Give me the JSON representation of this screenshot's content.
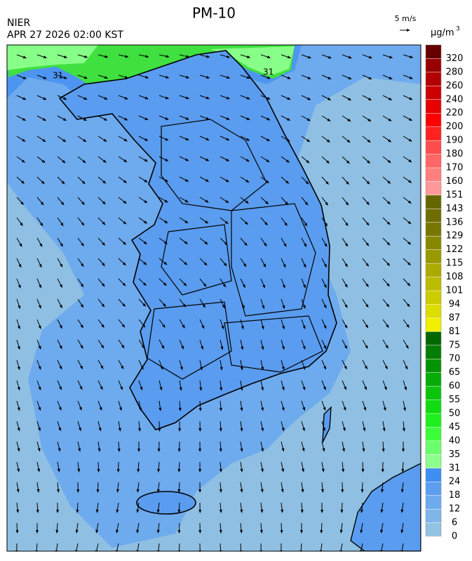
{
  "header": {
    "title": "PM-10",
    "agency": "NIER",
    "timestamp": "APR 27 2026 02:00 KST",
    "wind_scale": "5 m/s"
  },
  "map": {
    "contour_labels": [
      "31",
      "31"
    ]
  },
  "legend": {
    "unit": "μg/m",
    "unit_superscript": "3",
    "levels": [
      0,
      6,
      12,
      18,
      24,
      31,
      35,
      40,
      45,
      50,
      55,
      60,
      65,
      70,
      75,
      81,
      87,
      94,
      101,
      108,
      115,
      122,
      129,
      136,
      143,
      151,
      160,
      170,
      180,
      190,
      200,
      220,
      240,
      260,
      280,
      320
    ],
    "colors": [
      "#93c3e3",
      "#7fb6ea",
      "#6eaaee",
      "#5c9eef",
      "#3f8ff2",
      "#8cff8c",
      "#6cff6c",
      "#3cff3c",
      "#1ef01e",
      "#10dc10",
      "#0cc40c",
      "#08ac08",
      "#059405",
      "#037d03",
      "#006600",
      "#f0f000",
      "#dddd00",
      "#cccc00",
      "#bbbb00",
      "#aaaa00",
      "#999900",
      "#888800",
      "#777700",
      "#6e6e00",
      "#666600",
      "#ff9999",
      "#ff7f7f",
      "#ff6666",
      "#ff4c4c",
      "#ff2020",
      "#ff0000",
      "#e60000",
      "#cc0000",
      "#b30000",
      "#990000",
      "#660000"
    ]
  }
}
